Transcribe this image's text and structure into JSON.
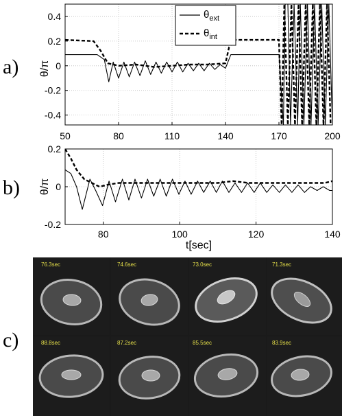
{
  "figure": {
    "panel_labels": [
      "a)",
      "b)",
      "c)"
    ],
    "legend": {
      "ext_base": "θ",
      "ext_sub": "ext",
      "int_base": "θ",
      "int_sub": "int"
    },
    "image_timestamps_row1": [
      "76.3sec",
      "74.6sec",
      "73.0sec",
      "71.3sec"
    ],
    "image_timestamps_row2": [
      "88.8sec",
      "87.2sec",
      "85.5sec",
      "83.9sec"
    ]
  },
  "chart_data": [
    {
      "type": "line",
      "panel": "a)",
      "ylabel": "θ/π",
      "xlabel": "",
      "xlim": [
        50,
        200
      ],
      "ylim": [
        -0.48,
        0.5
      ],
      "xticks": [
        "50",
        "80",
        "110",
        "140",
        "170",
        "200"
      ],
      "yticks": [
        "0.4",
        "0.2",
        "0",
        "-0.2",
        "-0.4"
      ],
      "grid": true,
      "legend_position": "top-right",
      "series": [
        {
          "name": "θext",
          "style": "solid",
          "color": "#000000",
          "description_points": {
            "x": [
              50,
              68,
              72,
              74.5,
              77,
              80,
              83,
              86,
              89,
              92,
              95,
              98,
              101,
              104,
              107,
              110,
              113,
              116,
              119,
              122,
              125,
              128,
              131,
              134,
              137,
              140,
              143,
              168,
              170,
              172.5,
              173.5,
              175,
              176.5,
              178.5,
              180.5,
              182,
              184,
              186,
              188,
              190,
              192,
              194,
              196,
              198,
              200
            ],
            "y": [
              0.09,
              0.09,
              0.05,
              -0.13,
              0.03,
              -0.1,
              0.03,
              -0.09,
              0.03,
              -0.08,
              0.04,
              -0.07,
              0.03,
              -0.06,
              0.03,
              -0.05,
              0.03,
              -0.05,
              0.02,
              -0.04,
              0.02,
              -0.04,
              0.02,
              -0.03,
              0.01,
              -0.02,
              0.09,
              0.09,
              0.09,
              -0.48,
              0.5,
              0.5,
              -0.48,
              0.5,
              -0.48,
              0.5,
              -0.48,
              0.5,
              -0.48,
              0.5,
              -0.48,
              0.5,
              -0.48,
              0.5,
              -0.48
            ]
          }
        },
        {
          "name": "θint",
          "style": "dashed",
          "color": "#000000",
          "description_points": {
            "x": [
              50,
              66,
              70,
              74,
              80,
              90,
              100,
              110,
              120,
              130,
              140,
              142,
              145,
              168,
              170,
              171.5,
              173,
              175,
              177,
              179,
              181,
              183,
              185,
              187,
              189,
              191,
              193,
              195,
              197,
              199
            ],
            "y": [
              0.21,
              0.2,
              0.12,
              0.02,
              0.0,
              0.01,
              -0.01,
              0.0,
              0.01,
              0.01,
              0.02,
              0.15,
              0.21,
              0.21,
              0.21,
              -0.48,
              0.5,
              -0.48,
              0.5,
              -0.48,
              0.5,
              -0.48,
              0.5,
              -0.48,
              0.5,
              -0.48,
              0.5,
              -0.48,
              0.5,
              -0.48
            ]
          }
        }
      ]
    },
    {
      "type": "line",
      "panel": "b)",
      "ylabel": "θ/π",
      "xlabel": "t[sec]",
      "xlim": [
        70,
        140
      ],
      "ylim": [
        -0.2,
        0.2
      ],
      "xticks": [
        "80",
        "100",
        "120",
        "140"
      ],
      "yticks": [
        "0.2",
        "0",
        "-0.2"
      ],
      "grid": true,
      "series": [
        {
          "name": "θext",
          "style": "solid",
          "color": "#000000",
          "description_points": {
            "x": [
              70,
              71.5,
              73,
              74.5,
              76.5,
              78,
              79.8,
              81.5,
              83.2,
              85,
              86.7,
              88.3,
              90,
              91.6,
              93.2,
              94.9,
              96.5,
              98.1,
              99.8,
              101.4,
              103,
              104.7,
              106.3,
              108,
              109.6,
              111.2,
              112.9,
              114.5,
              116.2,
              117.8,
              119.5,
              121.1,
              122.8,
              124.4,
              126.1,
              127.7,
              129.4,
              131,
              132.7,
              134.3,
              136,
              137.6,
              139.3,
              140
            ],
            "y": [
              0.09,
              0.07,
              0.0,
              -0.12,
              0.04,
              -0.02,
              -0.1,
              0.03,
              -0.08,
              0.04,
              -0.07,
              0.04,
              -0.06,
              0.04,
              -0.05,
              0.04,
              -0.05,
              0.04,
              -0.04,
              0.03,
              -0.04,
              0.03,
              -0.03,
              0.03,
              -0.03,
              0.03,
              -0.03,
              0.02,
              -0.03,
              0.02,
              -0.03,
              0.02,
              -0.03,
              0.01,
              -0.03,
              0.01,
              -0.03,
              0.01,
              -0.03,
              0.0,
              -0.02,
              0.0,
              -0.02,
              -0.02
            ]
          }
        },
        {
          "name": "θint",
          "style": "dashed",
          "color": "#000000",
          "description_points": {
            "x": [
              70,
              71.5,
              73,
              75,
              77,
              79,
              81,
              84,
              87,
              90,
              94,
              98,
              102,
              106,
              110,
              114,
              118,
              122,
              126,
              130,
              134,
              138,
              140
            ],
            "y": [
              0.2,
              0.15,
              0.09,
              0.04,
              0.02,
              0.0,
              0.01,
              0.02,
              0.02,
              0.02,
              0.02,
              0.02,
              0.02,
              0.02,
              0.02,
              0.03,
              0.02,
              0.02,
              0.02,
              0.02,
              0.02,
              0.02,
              0.03
            ]
          }
        }
      ]
    }
  ]
}
